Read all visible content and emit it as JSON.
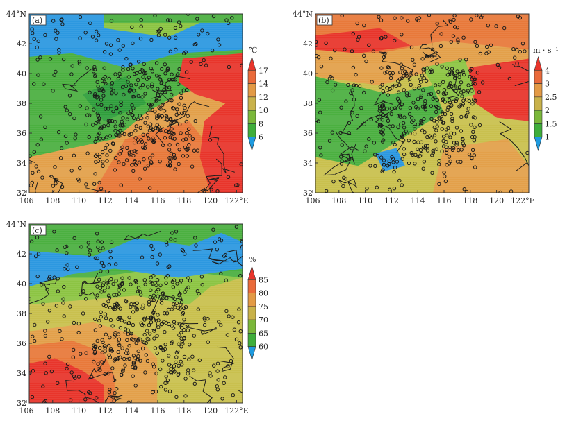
{
  "panels": [
    {
      "id": "a",
      "label": "(a)",
      "unit": "℃",
      "lat_ticks": [
        "44°N",
        "42",
        "40",
        "38",
        "36",
        "34",
        "32"
      ],
      "lon_ticks": [
        "106",
        "108",
        "110",
        "112",
        "114",
        "116",
        "118",
        "120",
        "122°E"
      ],
      "colorbar_ticks": [
        "17",
        "14",
        "12",
        "10",
        "8",
        "6"
      ],
      "colorbar_colors": [
        "#e8352b",
        "#ea6a3a",
        "#e39a45",
        "#c9b24a",
        "#7bb83a",
        "#3fae3b",
        "#1e9be0"
      ]
    },
    {
      "id": "b",
      "label": "(b)",
      "unit": "m · s⁻¹",
      "lat_ticks": [
        "44°N",
        "42",
        "40",
        "38",
        "36",
        "34",
        "32"
      ],
      "lon_ticks": [
        "106",
        "108",
        "110",
        "112",
        "114",
        "116",
        "118",
        "120",
        "122°E"
      ],
      "colorbar_ticks": [
        "4",
        "3",
        "2.5",
        "2",
        "1.5",
        "1"
      ],
      "colorbar_colors": [
        "#e8352b",
        "#ea6a3a",
        "#e39a45",
        "#c9b24a",
        "#7bb83a",
        "#3fae3b",
        "#1e9be0"
      ]
    },
    {
      "id": "c",
      "label": "(c)",
      "unit": "%",
      "lat_ticks": [
        "44°N",
        "42",
        "40",
        "38",
        "36",
        "34",
        "32"
      ],
      "lon_ticks": [
        "106",
        "108",
        "110",
        "112",
        "114",
        "116",
        "118",
        "120",
        "122°E"
      ],
      "colorbar_ticks": [
        "85",
        "80",
        "75",
        "70",
        "65",
        "60"
      ],
      "colorbar_colors": [
        "#e8352b",
        "#ea6a3a",
        "#e39a45",
        "#c9b24a",
        "#7bb83a",
        "#3fae3b",
        "#1e9be0"
      ]
    }
  ],
  "map_colors": {
    "red": "#e8352b",
    "orange": "#e8793a",
    "tan": "#e3a04a",
    "yellow": "#c9c04e",
    "lightgreen": "#8cc443",
    "green": "#4bb040",
    "darkgreen": "#2f9e3c",
    "blue": "#2c98e0"
  }
}
